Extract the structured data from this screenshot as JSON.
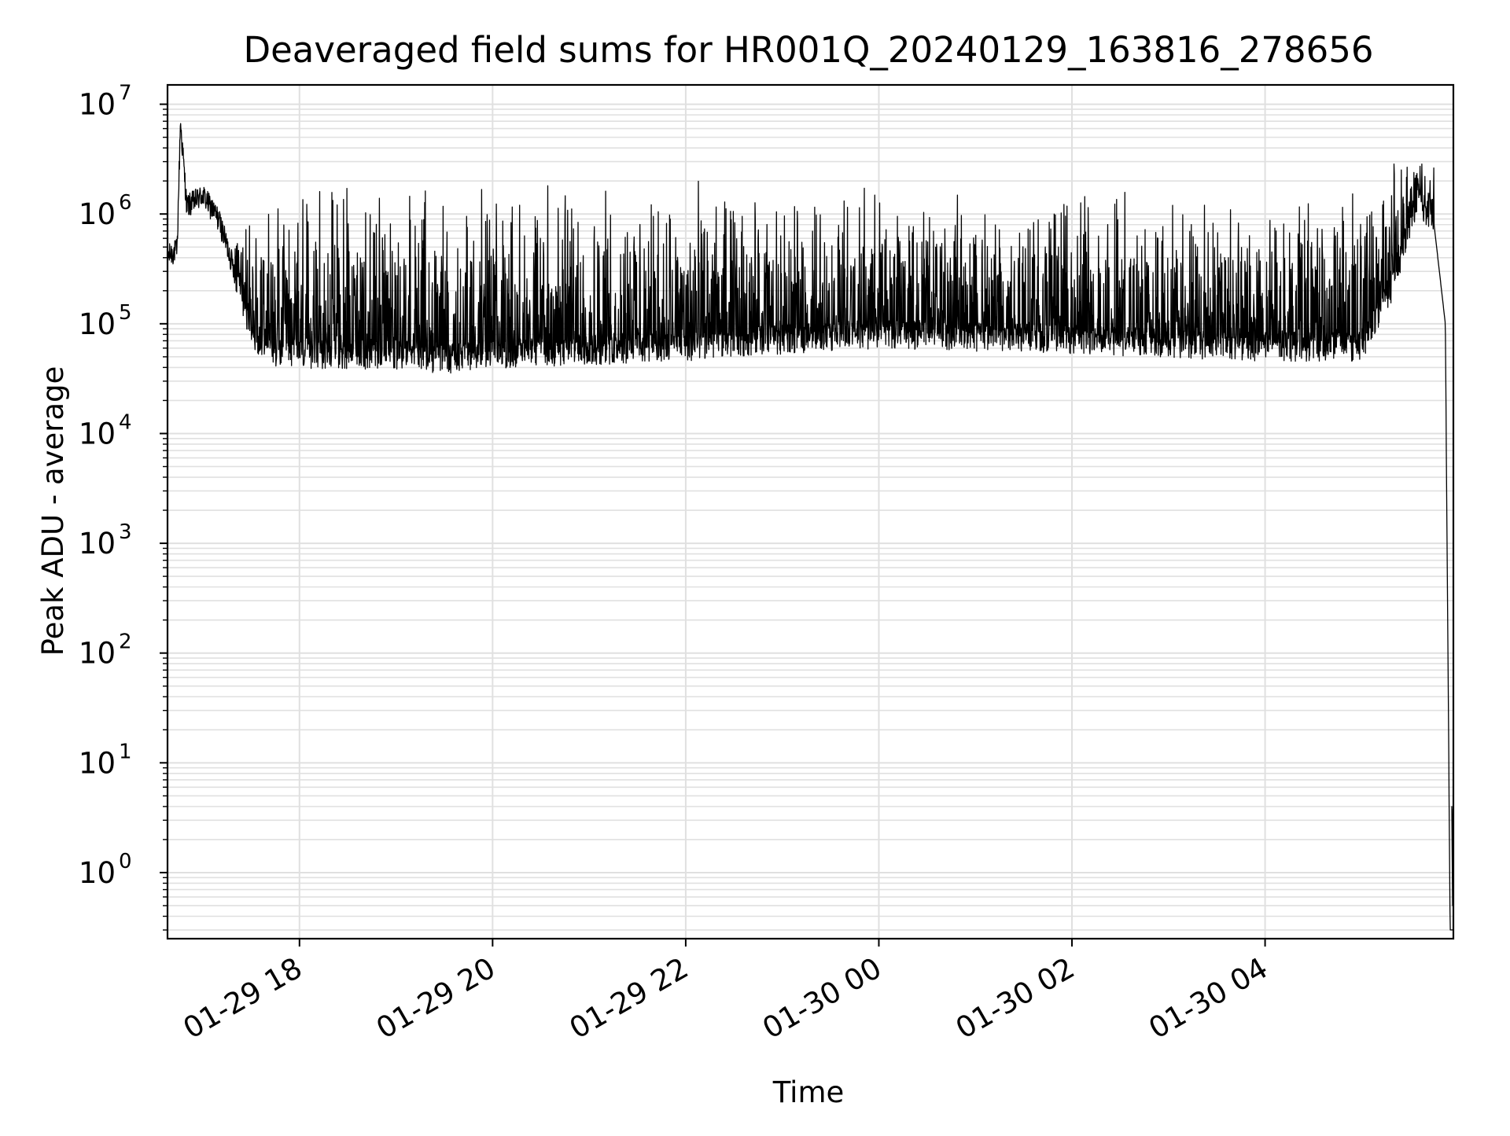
{
  "chart_data": {
    "type": "line",
    "title": "Deaveraged field sums for HR001Q_20240129_163816_278656",
    "xlabel": "Time",
    "ylabel": "Peak ADU - average",
    "yscale": "log",
    "ylim": [
      0.25,
      15000000
    ],
    "xlim": [
      "2024-01-29 16:38",
      "2024-01-30 05:57"
    ],
    "grid": true,
    "line_color": "#000000",
    "grid_color": "#e0e0e0",
    "x_ticks": [
      {
        "value": "2024-01-29 18:00",
        "label": "01-29 18"
      },
      {
        "value": "2024-01-29 20:00",
        "label": "01-29 20"
      },
      {
        "value": "2024-01-29 22:00",
        "label": "01-29 22"
      },
      {
        "value": "2024-01-30 00:00",
        "label": "01-30 00"
      },
      {
        "value": "2024-01-30 02:00",
        "label": "01-30 02"
      },
      {
        "value": "2024-01-30 04:00",
        "label": "01-30 04"
      }
    ],
    "y_ticks": [
      {
        "value": 1,
        "base": "10",
        "exp": "0"
      },
      {
        "value": 10,
        "base": "10",
        "exp": "1"
      },
      {
        "value": 100,
        "base": "10",
        "exp": "2"
      },
      {
        "value": 1000,
        "base": "10",
        "exp": "3"
      },
      {
        "value": 10000,
        "base": "10",
        "exp": "4"
      },
      {
        "value": 100000,
        "base": "10",
        "exp": "5"
      },
      {
        "value": 1000000,
        "base": "10",
        "exp": "6"
      },
      {
        "value": 10000000,
        "base": "10",
        "exp": "7"
      }
    ],
    "series": [
      {
        "points": [
          [
            "2024-01-29 16:38",
            420000
          ],
          [
            "2024-01-29 16:44",
            480000
          ],
          [
            "2024-01-29 16:46",
            7000000
          ],
          [
            "2024-01-29 16:50",
            1200000
          ],
          [
            "2024-01-29 17:00",
            1500000
          ],
          [
            "2024-01-29 17:10",
            900000
          ],
          [
            "2024-01-29 17:20",
            300000
          ],
          [
            "2024-01-29 17:30",
            90000
          ],
          [
            "2024-01-29 17:40",
            60000
          ],
          [
            "2024-01-29 18:00",
            55000
          ],
          [
            "2024-01-29 19:00",
            55000
          ],
          [
            "2024-01-29 19:30",
            50000
          ],
          [
            "2024-01-29 20:00",
            55000
          ],
          [
            "2024-01-29 21:00",
            60000
          ],
          [
            "2024-01-29 22:00",
            65000
          ],
          [
            "2024-01-29 23:00",
            75000
          ],
          [
            "2024-01-30 00:00",
            85000
          ],
          [
            "2024-01-30 01:00",
            80000
          ],
          [
            "2024-01-30 01:30",
            80000
          ],
          [
            "2024-01-30 02:00",
            75000
          ],
          [
            "2024-01-30 03:00",
            70000
          ],
          [
            "2024-01-30 04:00",
            65000
          ],
          [
            "2024-01-30 05:00",
            65000
          ],
          [
            "2024-01-30 05:20",
            250000
          ],
          [
            "2024-01-30 05:35",
            1500000
          ],
          [
            "2024-01-30 05:45",
            800000
          ],
          [
            "2024-01-30 05:52",
            100000
          ],
          [
            "2024-01-30 05:55",
            0.3
          ]
        ],
        "noise_envelope": [
          [
            "2024-01-29 17:30",
            1900000
          ],
          [
            "2024-01-29 19:40",
            2800000
          ],
          [
            "2024-01-29 21:00",
            2000000
          ],
          [
            "2024-01-30 01:50",
            2300000
          ],
          [
            "2024-01-30 04:00",
            1500000
          ],
          [
            "2024-01-30 05:35",
            3700000
          ]
        ]
      }
    ]
  }
}
